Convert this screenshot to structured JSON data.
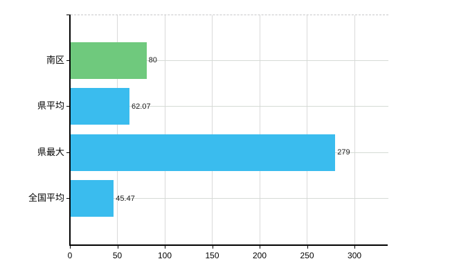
{
  "chart_data": {
    "type": "bar",
    "orientation": "horizontal",
    "title": "",
    "xlabel": "",
    "ylabel": "",
    "categories": [
      "南区",
      "県平均",
      "県最大",
      "全国平均"
    ],
    "values": [
      80,
      62.07,
      279,
      45.47
    ],
    "value_labels": [
      "80",
      "62.07",
      "279",
      "45.47"
    ],
    "bar_colors": [
      "#6fc97d",
      "#3abcee",
      "#3abcee",
      "#3abcee"
    ],
    "x_ticks": [
      0,
      50,
      100,
      150,
      200,
      250,
      300
    ],
    "x_tick_labels": [
      "0",
      "50",
      "100",
      "150",
      "200",
      "250",
      "300"
    ],
    "xlim": [
      0,
      335
    ],
    "grid": true,
    "legend": "none",
    "gridline_color": "#d9d9d9",
    "axis_color": "#000000",
    "background_color": "#ffffff"
  }
}
